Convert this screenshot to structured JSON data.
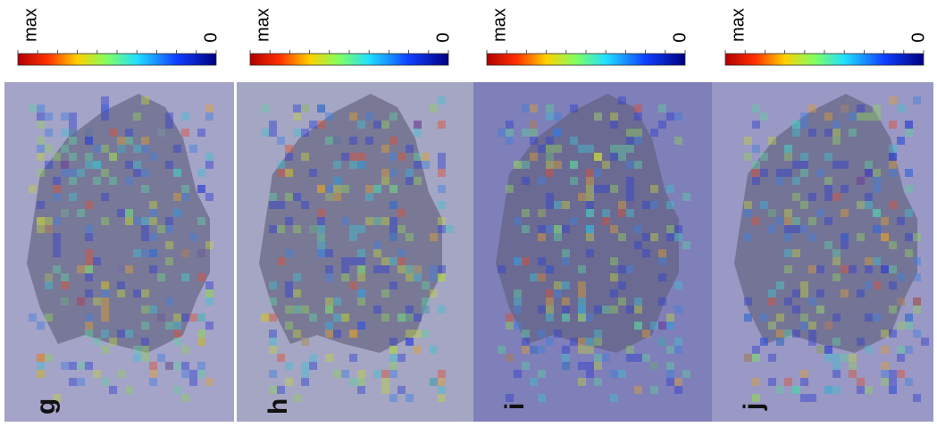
{
  "panels": [
    {
      "label": "g",
      "colorbar": {
        "high": "max",
        "low": "0"
      }
    },
    {
      "label": "h",
      "colorbar": {
        "high": "max",
        "low": "0"
      }
    },
    {
      "label": "i",
      "colorbar": {
        "high": "max",
        "low": "0"
      }
    },
    {
      "label": "j",
      "colorbar": {
        "high": "max",
        "low": "0"
      }
    }
  ]
}
